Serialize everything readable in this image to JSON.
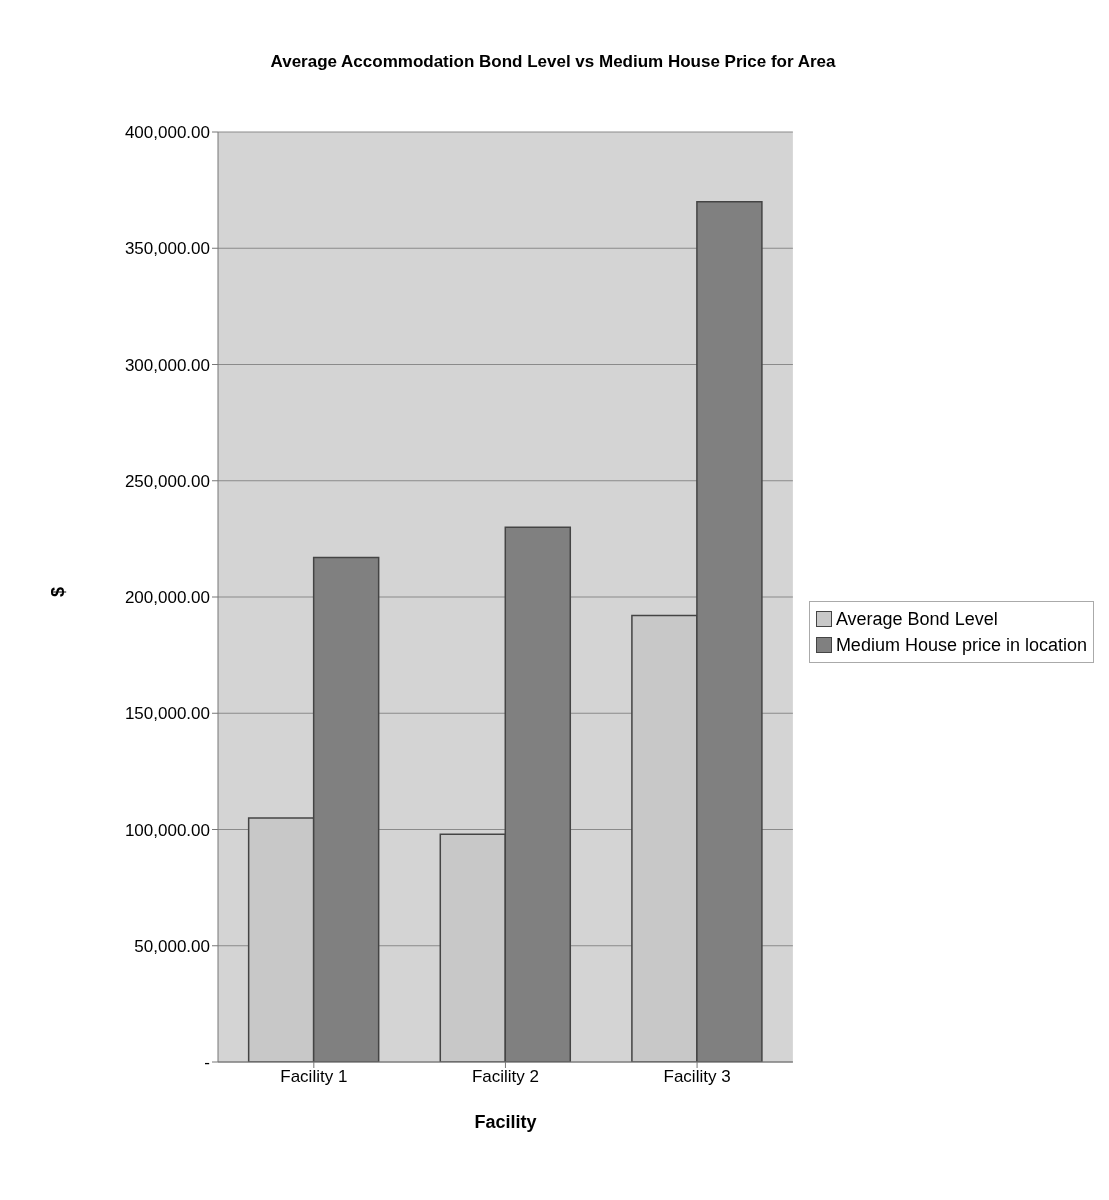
{
  "chart_data": {
    "type": "bar",
    "title": "Average Accommodation Bond Level vs Medium House Price for Area",
    "xlabel": "Facility",
    "ylabel": "$",
    "categories": [
      "Facility 1",
      "Facility 2",
      "Facility 3"
    ],
    "series": [
      {
        "name": "Average Bond Level",
        "color": "#c8c8c8",
        "values": [
          105000,
          98000,
          192000
        ]
      },
      {
        "name": "Medium House price in location",
        "color": "#808080",
        "values": [
          217000,
          230000,
          370000
        ]
      }
    ],
    "ylim": [
      0,
      400000
    ],
    "yticks": [
      {
        "value": 0,
        "label": "-"
      },
      {
        "value": 50000,
        "label": "50,000.00"
      },
      {
        "value": 100000,
        "label": "100,000.00"
      },
      {
        "value": 150000,
        "label": "150,000.00"
      },
      {
        "value": 200000,
        "label": "200,000.00"
      },
      {
        "value": 250000,
        "label": "250,000.00"
      },
      {
        "value": 300000,
        "label": "300,000.00"
      },
      {
        "value": 350000,
        "label": "350,000.00"
      },
      {
        "value": 400000,
        "label": "400,000.00"
      }
    ],
    "grid": "y",
    "legend": "right"
  }
}
